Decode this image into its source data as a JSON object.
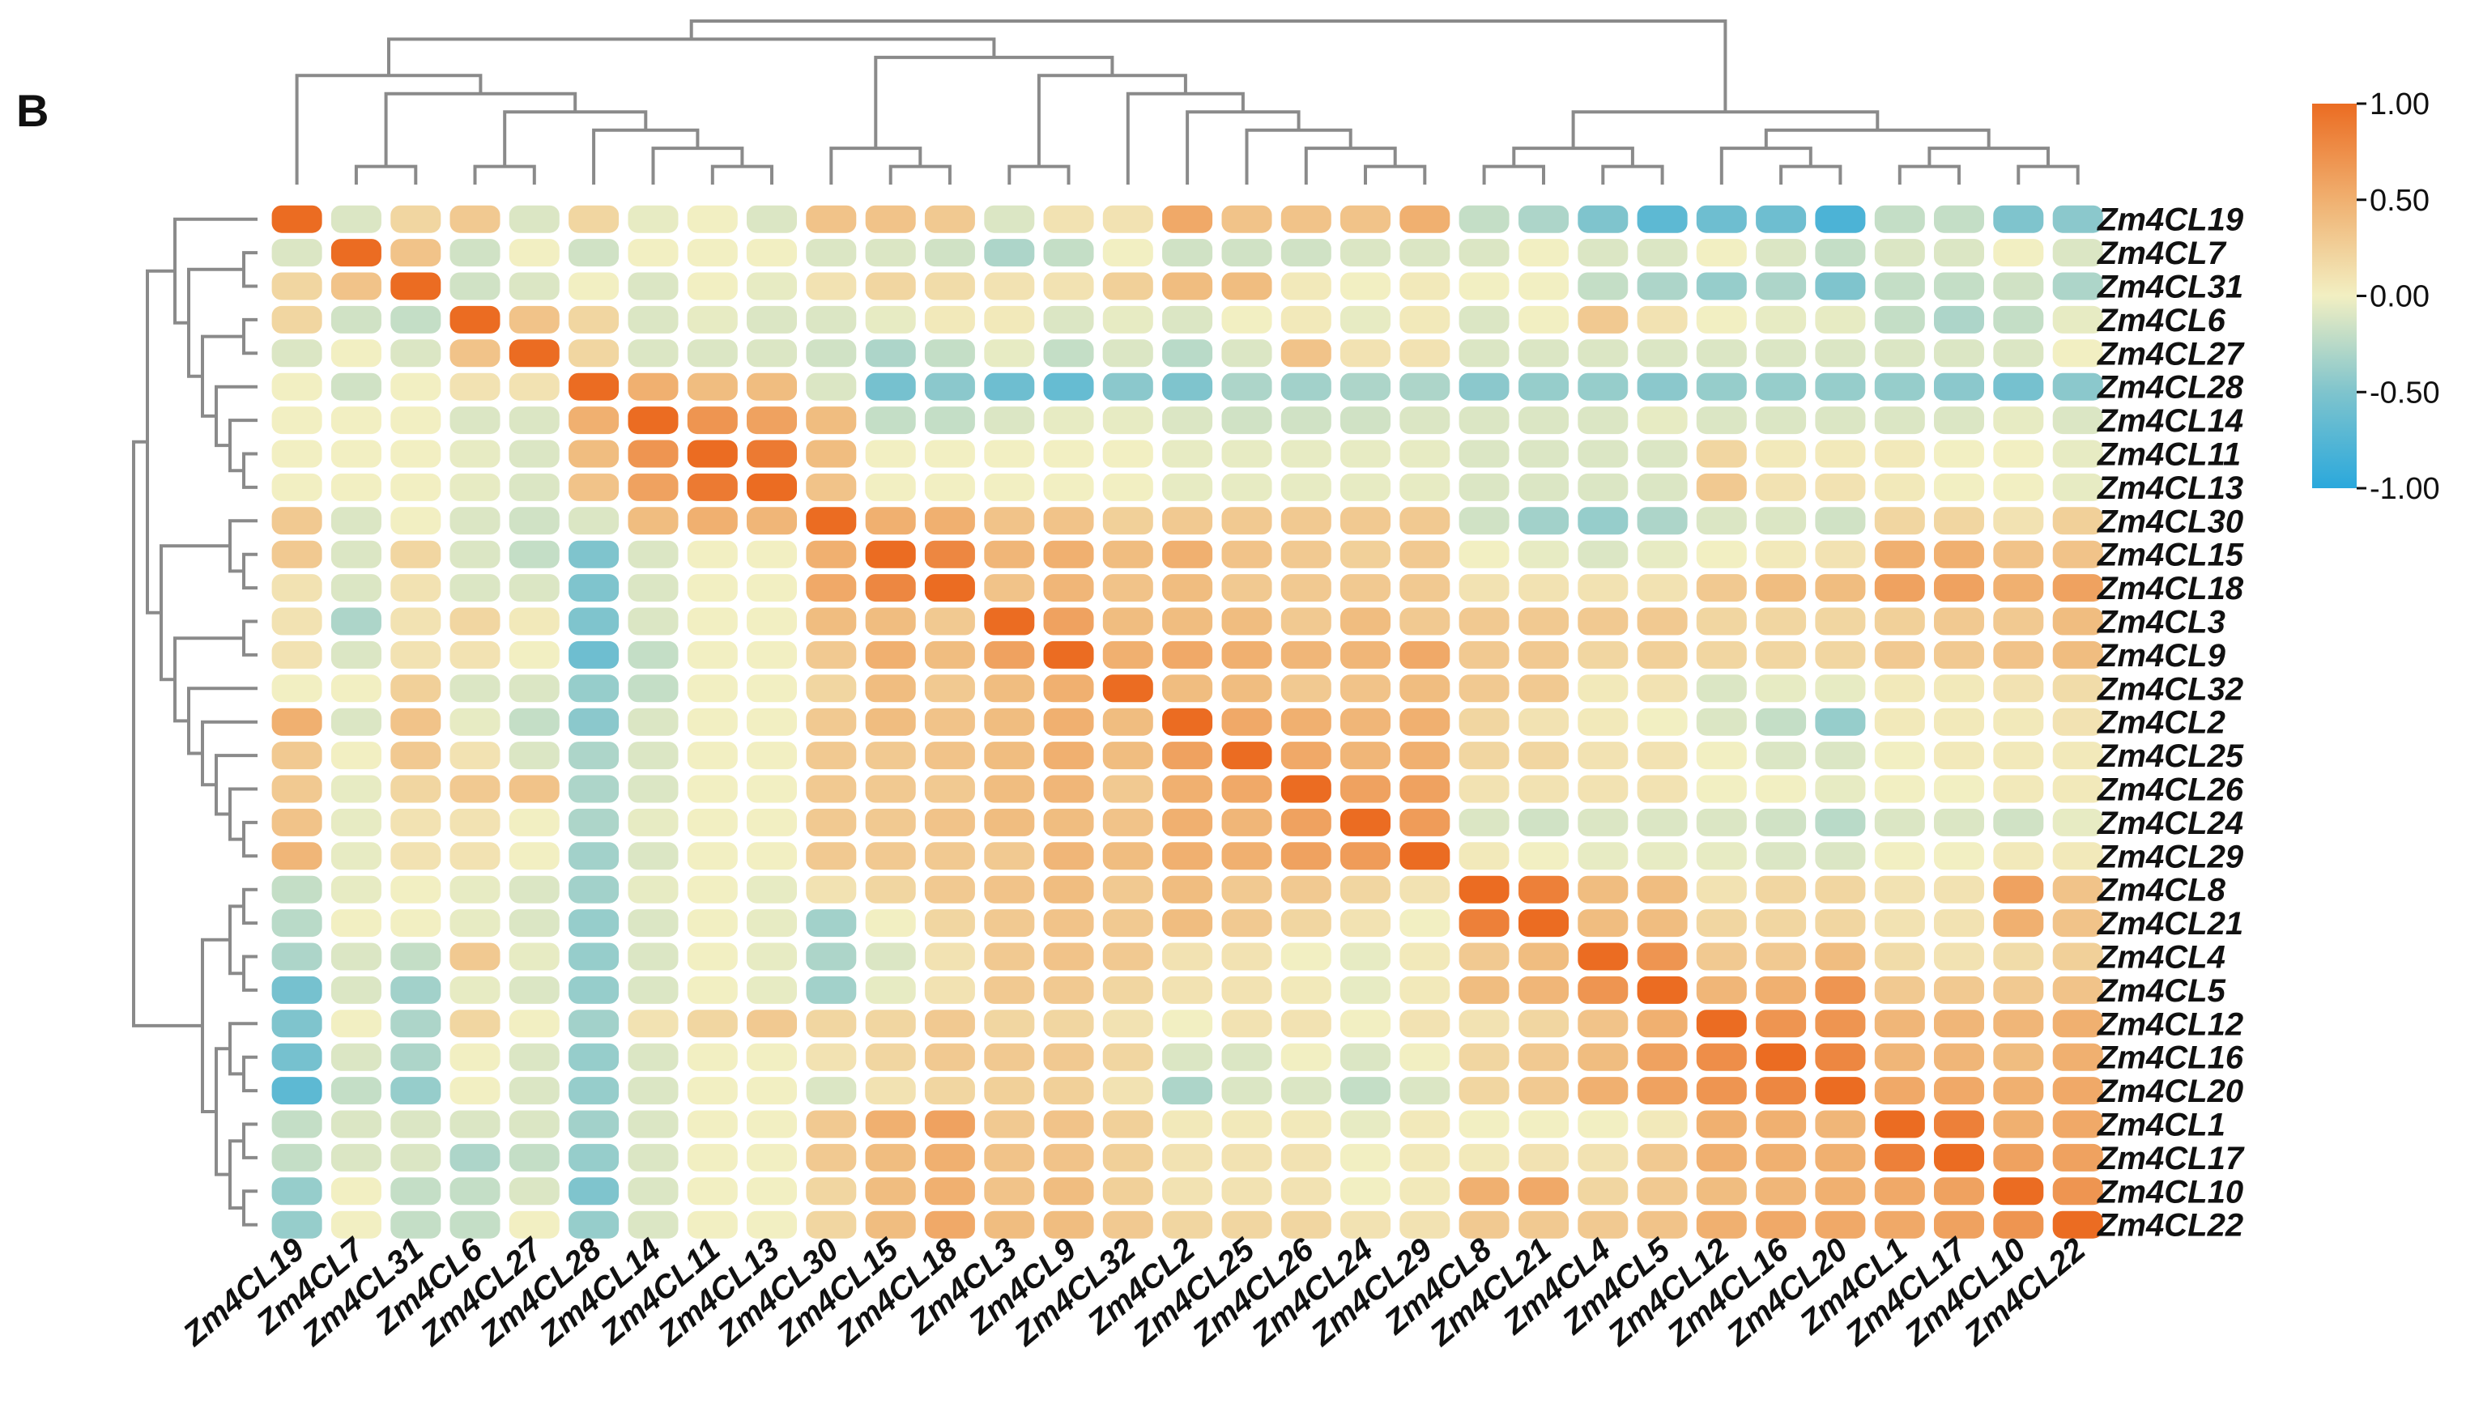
{
  "panel_label": "B",
  "chart_data": {
    "type": "heatmap",
    "title": "",
    "panel": "B",
    "rows": [
      "Zm4CL19",
      "Zm4CL7",
      "Zm4CL31",
      "Zm4CL6",
      "Zm4CL27",
      "Zm4CL28",
      "Zm4CL14",
      "Zm4CL11",
      "Zm4CL13",
      "Zm4CL30",
      "Zm4CL15",
      "Zm4CL18",
      "Zm4CL3",
      "Zm4CL9",
      "Zm4CL32",
      "Zm4CL2",
      "Zm4CL25",
      "Zm4CL26",
      "Zm4CL24",
      "Zm4CL29",
      "Zm4CL8",
      "Zm4CL21",
      "Zm4CL4",
      "Zm4CL5",
      "Zm4CL12",
      "Zm4CL16",
      "Zm4CL20",
      "Zm4CL1",
      "Zm4CL17",
      "Zm4CL10",
      "Zm4CL22"
    ],
    "columns": [
      "Zm4CL19",
      "Zm4CL7",
      "Zm4CL31",
      "Zm4CL6",
      "Zm4CL27",
      "Zm4CL28",
      "Zm4CL14",
      "Zm4CL11",
      "Zm4CL13",
      "Zm4CL30",
      "Zm4CL15",
      "Zm4CL18",
      "Zm4CL3",
      "Zm4CL9",
      "Zm4CL32",
      "Zm4CL2",
      "Zm4CL25",
      "Zm4CL26",
      "Zm4CL24",
      "Zm4CL29",
      "Zm4CL8",
      "Zm4CL21",
      "Zm4CL4",
      "Zm4CL5",
      "Zm4CL12",
      "Zm4CL16",
      "Zm4CL20",
      "Zm4CL1",
      "Zm4CL17",
      "Zm4CL10",
      "Zm4CL22"
    ],
    "values": [
      [
        1.0,
        -0.1,
        0.2,
        0.3,
        -0.1,
        0.2,
        -0.05,
        0.0,
        -0.1,
        0.35,
        0.35,
        0.3,
        -0.1,
        0.1,
        0.1,
        0.55,
        0.35,
        0.35,
        0.35,
        0.5,
        -0.2,
        -0.3,
        -0.5,
        -0.7,
        -0.6,
        -0.6,
        -0.8,
        -0.2,
        -0.2,
        -0.5,
        -0.45
      ],
      [
        -0.1,
        1.0,
        0.35,
        -0.15,
        0.0,
        -0.15,
        0.0,
        0.0,
        0.0,
        -0.1,
        -0.1,
        -0.15,
        -0.3,
        -0.2,
        0.0,
        -0.15,
        -0.15,
        -0.15,
        -0.1,
        -0.1,
        -0.1,
        0.0,
        -0.1,
        -0.1,
        0.0,
        -0.1,
        -0.2,
        -0.1,
        -0.1,
        0.0,
        -0.1
      ],
      [
        0.2,
        0.35,
        1.0,
        -0.15,
        -0.1,
        0.0,
        -0.1,
        0.0,
        -0.05,
        0.1,
        0.2,
        0.15,
        0.1,
        0.1,
        0.25,
        0.4,
        0.4,
        0.05,
        0.0,
        0.05,
        0.0,
        0.0,
        -0.2,
        -0.3,
        -0.4,
        -0.3,
        -0.5,
        -0.2,
        -0.2,
        -0.15,
        -0.3
      ],
      [
        0.2,
        -0.15,
        -0.2,
        1.0,
        0.35,
        0.2,
        -0.1,
        -0.05,
        -0.1,
        -0.1,
        -0.05,
        0.05,
        0.05,
        -0.1,
        -0.05,
        -0.1,
        0.0,
        0.05,
        -0.05,
        0.05,
        -0.1,
        0.0,
        0.3,
        0.1,
        0.0,
        -0.05,
        -0.05,
        -0.2,
        -0.3,
        -0.2,
        -0.05
      ],
      [
        -0.1,
        0.0,
        -0.1,
        0.35,
        1.0,
        0.2,
        -0.1,
        -0.1,
        -0.1,
        -0.15,
        -0.3,
        -0.2,
        -0.05,
        -0.2,
        -0.1,
        -0.25,
        -0.1,
        0.35,
        0.1,
        0.1,
        -0.1,
        -0.1,
        -0.1,
        -0.1,
        -0.1,
        -0.1,
        -0.1,
        -0.1,
        -0.1,
        -0.1,
        0.0
      ],
      [
        0.0,
        -0.15,
        0.0,
        0.1,
        0.1,
        1.0,
        0.5,
        0.4,
        0.4,
        -0.1,
        -0.55,
        -0.45,
        -0.6,
        -0.65,
        -0.45,
        -0.5,
        -0.3,
        -0.35,
        -0.3,
        -0.3,
        -0.45,
        -0.4,
        -0.4,
        -0.45,
        -0.4,
        -0.4,
        -0.4,
        -0.4,
        -0.45,
        -0.55,
        -0.45
      ],
      [
        0.0,
        0.0,
        0.0,
        -0.1,
        -0.1,
        0.5,
        1.0,
        0.7,
        0.6,
        0.4,
        -0.2,
        -0.2,
        -0.1,
        -0.05,
        -0.05,
        -0.1,
        -0.15,
        -0.15,
        -0.15,
        -0.1,
        -0.1,
        -0.1,
        -0.1,
        -0.05,
        -0.1,
        -0.1,
        -0.1,
        -0.1,
        -0.1,
        -0.05,
        -0.1
      ],
      [
        0.0,
        0.0,
        0.0,
        -0.05,
        -0.1,
        0.4,
        0.7,
        1.0,
        0.9,
        0.4,
        0.0,
        0.0,
        0.0,
        0.0,
        0.0,
        -0.05,
        -0.05,
        -0.05,
        -0.05,
        -0.05,
        -0.1,
        -0.1,
        -0.1,
        -0.1,
        0.2,
        0.05,
        0.05,
        0.05,
        0.0,
        0.0,
        -0.05
      ],
      [
        0.0,
        0.0,
        0.0,
        -0.05,
        -0.1,
        0.35,
        0.6,
        0.9,
        1.0,
        0.35,
        0.0,
        0.0,
        0.0,
        0.0,
        0.0,
        -0.05,
        -0.05,
        -0.05,
        -0.05,
        -0.05,
        -0.1,
        -0.1,
        -0.1,
        -0.1,
        0.3,
        0.1,
        0.1,
        0.05,
        0.0,
        0.0,
        -0.05
      ],
      [
        0.3,
        -0.1,
        0.0,
        -0.1,
        -0.15,
        -0.1,
        0.4,
        0.5,
        0.45,
        1.0,
        0.5,
        0.5,
        0.35,
        0.35,
        0.25,
        0.3,
        0.3,
        0.3,
        0.3,
        0.3,
        -0.15,
        -0.35,
        -0.4,
        -0.3,
        -0.1,
        -0.1,
        -0.15,
        0.2,
        0.2,
        0.1,
        0.25
      ],
      [
        0.3,
        -0.1,
        0.2,
        -0.1,
        -0.2,
        -0.5,
        -0.1,
        0.0,
        0.0,
        0.5,
        1.0,
        0.8,
        0.45,
        0.5,
        0.4,
        0.5,
        0.35,
        0.3,
        0.25,
        0.3,
        0.0,
        -0.05,
        -0.1,
        -0.05,
        0.0,
        0.05,
        0.1,
        0.5,
        0.5,
        0.35,
        0.35
      ],
      [
        0.1,
        -0.1,
        0.1,
        -0.1,
        -0.1,
        -0.5,
        -0.1,
        0.0,
        0.0,
        0.55,
        0.8,
        1.0,
        0.35,
        0.45,
        0.35,
        0.4,
        0.3,
        0.3,
        0.3,
        0.3,
        0.1,
        0.1,
        0.1,
        0.1,
        0.3,
        0.4,
        0.4,
        0.6,
        0.6,
        0.5,
        0.6
      ],
      [
        0.1,
        -0.3,
        0.1,
        0.2,
        0.05,
        -0.5,
        -0.1,
        0.0,
        0.0,
        0.4,
        0.4,
        0.3,
        1.0,
        0.6,
        0.4,
        0.4,
        0.4,
        0.3,
        0.4,
        0.3,
        0.3,
        0.3,
        0.3,
        0.3,
        0.2,
        0.2,
        0.2,
        0.25,
        0.3,
        0.3,
        0.4
      ],
      [
        0.1,
        -0.1,
        0.1,
        0.1,
        0.0,
        -0.6,
        -0.2,
        0.0,
        0.0,
        0.3,
        0.5,
        0.4,
        0.6,
        1.0,
        0.5,
        0.55,
        0.5,
        0.45,
        0.45,
        0.55,
        0.3,
        0.3,
        0.2,
        0.25,
        0.2,
        0.2,
        0.2,
        0.3,
        0.3,
        0.35,
        0.4
      ],
      [
        0.0,
        0.0,
        0.25,
        -0.1,
        -0.1,
        -0.4,
        -0.2,
        0.0,
        0.0,
        0.2,
        0.4,
        0.3,
        0.4,
        0.5,
        1.0,
        0.4,
        0.4,
        0.3,
        0.35,
        0.4,
        0.3,
        0.3,
        0.05,
        0.1,
        -0.1,
        -0.05,
        -0.05,
        0.05,
        0.05,
        0.1,
        0.15
      ],
      [
        0.5,
        -0.1,
        0.35,
        -0.05,
        -0.2,
        -0.45,
        -0.1,
        0.0,
        0.0,
        0.3,
        0.4,
        0.35,
        0.4,
        0.5,
        0.4,
        1.0,
        0.55,
        0.5,
        0.45,
        0.5,
        0.2,
        0.1,
        0.05,
        0.0,
        -0.1,
        -0.2,
        -0.4,
        0.05,
        0.05,
        0.05,
        0.1
      ],
      [
        0.3,
        0.0,
        0.3,
        0.1,
        -0.1,
        -0.3,
        -0.1,
        0.0,
        0.0,
        0.3,
        0.3,
        0.35,
        0.4,
        0.5,
        0.4,
        0.6,
        1.0,
        0.55,
        0.45,
        0.5,
        0.2,
        0.2,
        0.1,
        0.1,
        0.0,
        -0.1,
        -0.1,
        0.0,
        0.05,
        0.05,
        0.05
      ],
      [
        0.3,
        -0.05,
        0.2,
        0.3,
        0.35,
        -0.3,
        -0.1,
        0.0,
        0.0,
        0.3,
        0.3,
        0.3,
        0.4,
        0.45,
        0.3,
        0.5,
        0.55,
        1.0,
        0.6,
        0.6,
        0.1,
        0.1,
        0.1,
        0.1,
        0.0,
        0.0,
        -0.05,
        0.0,
        0.0,
        0.05,
        0.05
      ],
      [
        0.35,
        -0.05,
        0.1,
        0.1,
        0.0,
        -0.3,
        -0.05,
        0.0,
        0.0,
        0.3,
        0.3,
        0.35,
        0.4,
        0.4,
        0.35,
        0.5,
        0.45,
        0.6,
        1.0,
        0.65,
        -0.1,
        -0.15,
        -0.1,
        -0.1,
        -0.1,
        -0.15,
        -0.25,
        -0.1,
        -0.1,
        -0.15,
        -0.05
      ],
      [
        0.45,
        -0.05,
        0.1,
        0.1,
        0.0,
        -0.35,
        -0.1,
        0.0,
        0.0,
        0.3,
        0.3,
        0.3,
        0.3,
        0.45,
        0.4,
        0.5,
        0.5,
        0.6,
        0.65,
        1.0,
        0.05,
        0.0,
        -0.05,
        -0.05,
        -0.05,
        -0.1,
        -0.1,
        0.0,
        0.0,
        0.05,
        0.05
      ],
      [
        -0.2,
        -0.05,
        0.0,
        -0.05,
        -0.1,
        -0.35,
        -0.05,
        0.0,
        -0.05,
        0.1,
        0.2,
        0.3,
        0.35,
        0.4,
        0.3,
        0.4,
        0.3,
        0.3,
        0.2,
        0.1,
        1.0,
        0.85,
        0.4,
        0.4,
        0.1,
        0.2,
        0.2,
        0.1,
        0.1,
        0.6,
        0.35
      ],
      [
        -0.25,
        0.0,
        0.0,
        -0.05,
        -0.1,
        -0.4,
        -0.1,
        0.0,
        -0.05,
        -0.35,
        0.0,
        0.2,
        0.3,
        0.35,
        0.3,
        0.4,
        0.3,
        0.2,
        0.1,
        0.0,
        0.85,
        1.0,
        0.4,
        0.4,
        0.2,
        0.2,
        0.2,
        0.1,
        0.1,
        0.5,
        0.35
      ],
      [
        -0.3,
        -0.1,
        -0.2,
        0.3,
        -0.05,
        -0.4,
        -0.1,
        0.0,
        -0.05,
        -0.3,
        -0.1,
        0.1,
        0.3,
        0.35,
        0.3,
        0.1,
        0.1,
        0.0,
        -0.05,
        0.05,
        0.3,
        0.4,
        1.0,
        0.7,
        0.3,
        0.3,
        0.4,
        0.15,
        0.1,
        0.15,
        0.25
      ],
      [
        -0.55,
        -0.1,
        -0.35,
        -0.05,
        -0.1,
        -0.4,
        -0.1,
        0.0,
        -0.05,
        -0.35,
        -0.05,
        0.1,
        0.3,
        0.3,
        0.2,
        0.1,
        0.1,
        0.05,
        -0.05,
        0.05,
        0.4,
        0.45,
        0.7,
        1.0,
        0.45,
        0.5,
        0.7,
        0.3,
        0.3,
        0.3,
        0.35
      ],
      [
        -0.5,
        0.0,
        -0.3,
        0.2,
        0.0,
        -0.35,
        0.1,
        0.2,
        0.3,
        0.2,
        0.2,
        0.3,
        0.2,
        0.2,
        0.1,
        0.0,
        0.1,
        0.1,
        0.0,
        0.1,
        0.1,
        0.2,
        0.35,
        0.5,
        1.0,
        0.7,
        0.7,
        0.45,
        0.45,
        0.45,
        0.5
      ],
      [
        -0.55,
        -0.1,
        -0.3,
        0.0,
        -0.1,
        -0.4,
        -0.1,
        0.0,
        0.0,
        0.1,
        0.2,
        0.3,
        0.3,
        0.3,
        0.2,
        -0.1,
        -0.1,
        0.0,
        -0.1,
        0.0,
        0.2,
        0.3,
        0.4,
        0.6,
        0.75,
        1.0,
        0.8,
        0.45,
        0.45,
        0.4,
        0.5
      ],
      [
        -0.7,
        -0.2,
        -0.4,
        0.0,
        -0.1,
        -0.4,
        -0.1,
        0.0,
        0.0,
        -0.1,
        0.1,
        0.2,
        0.25,
        0.25,
        0.1,
        -0.3,
        -0.1,
        -0.1,
        -0.2,
        -0.1,
        0.2,
        0.3,
        0.5,
        0.6,
        0.7,
        0.8,
        1.0,
        0.55,
        0.55,
        0.5,
        0.55
      ],
      [
        -0.2,
        -0.1,
        -0.1,
        -0.1,
        -0.1,
        -0.35,
        -0.1,
        0.0,
        0.0,
        0.3,
        0.5,
        0.6,
        0.3,
        0.35,
        0.25,
        0.05,
        0.05,
        0.05,
        -0.05,
        0.05,
        0.0,
        0.0,
        0.0,
        0.05,
        0.5,
        0.5,
        0.45,
        1.0,
        0.85,
        0.5,
        0.55
      ],
      [
        -0.2,
        -0.1,
        -0.1,
        -0.3,
        -0.2,
        -0.4,
        -0.1,
        0.0,
        0.0,
        0.3,
        0.4,
        0.5,
        0.35,
        0.35,
        0.25,
        0.1,
        0.1,
        0.1,
        0.0,
        0.05,
        0.05,
        0.1,
        0.1,
        0.3,
        0.5,
        0.5,
        0.5,
        0.85,
        1.0,
        0.6,
        0.6
      ],
      [
        -0.4,
        0.0,
        -0.2,
        -0.2,
        -0.1,
        -0.5,
        -0.1,
        0.0,
        0.0,
        0.2,
        0.4,
        0.5,
        0.35,
        0.4,
        0.25,
        0.1,
        0.1,
        0.1,
        0.0,
        0.05,
        0.5,
        0.55,
        0.2,
        0.3,
        0.4,
        0.45,
        0.5,
        0.55,
        0.6,
        1.0,
        0.7
      ],
      [
        -0.4,
        0.0,
        -0.2,
        -0.2,
        0.0,
        -0.4,
        -0.1,
        0.0,
        0.0,
        0.2,
        0.4,
        0.55,
        0.4,
        0.4,
        0.3,
        0.2,
        0.2,
        0.2,
        0.1,
        0.1,
        0.3,
        0.3,
        0.3,
        0.35,
        0.5,
        0.55,
        0.55,
        0.55,
        0.6,
        0.7,
        1.0
      ]
    ],
    "color_scale": {
      "min": -1.0,
      "max": 1.0,
      "stops": [
        {
          "value": -1.0,
          "color": "#2aa8dc"
        },
        {
          "value": -0.5,
          "color": "#7fc4cd"
        },
        {
          "value": 0.0,
          "color": "#f2efc2"
        },
        {
          "value": 0.5,
          "color": "#f0b070"
        },
        {
          "value": 1.0,
          "color": "#eb6c22"
        }
      ],
      "ticks": [
        1.0,
        0.5,
        0.0,
        -0.5,
        -1.0
      ],
      "tick_labels": [
        "1.00",
        "0.50",
        "0.00",
        "-0.50",
        "-1.00"
      ]
    },
    "legend_position": "top-right",
    "dendrograms": [
      "top",
      "left"
    ]
  }
}
